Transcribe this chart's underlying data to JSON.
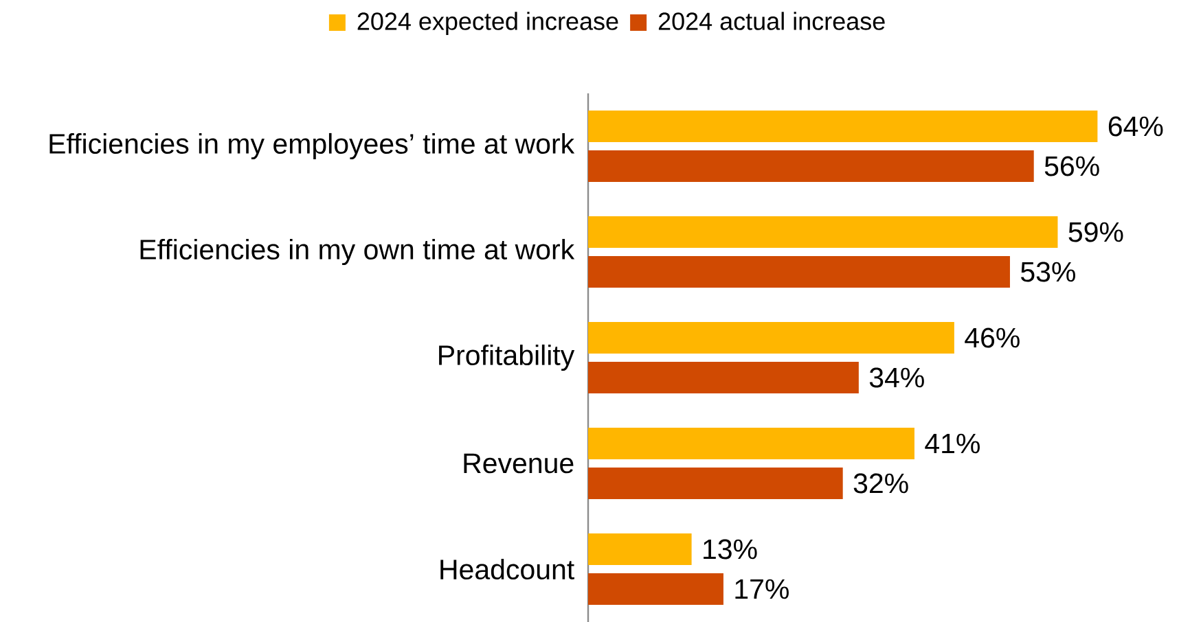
{
  "chart_data": {
    "type": "bar",
    "orientation": "horizontal",
    "legend": "top",
    "categories": [
      "Efficiencies in my employees’ time at work",
      "Efficiencies in my own time at work",
      "Profitability",
      "Revenue",
      "Headcount"
    ],
    "series": [
      {
        "name": "2024 expected increase",
        "color": "#ffb600",
        "values": [
          64,
          59,
          46,
          41,
          13
        ],
        "value_labels": [
          "64%",
          "59%",
          "46%",
          "41%",
          "13%"
        ]
      },
      {
        "name": "2024 actual increase",
        "color": "#d04a02",
        "values": [
          56,
          53,
          34,
          32,
          17
        ],
        "value_labels": [
          "56%",
          "53%",
          "34%",
          "32%",
          "17%"
        ]
      }
    ]
  }
}
